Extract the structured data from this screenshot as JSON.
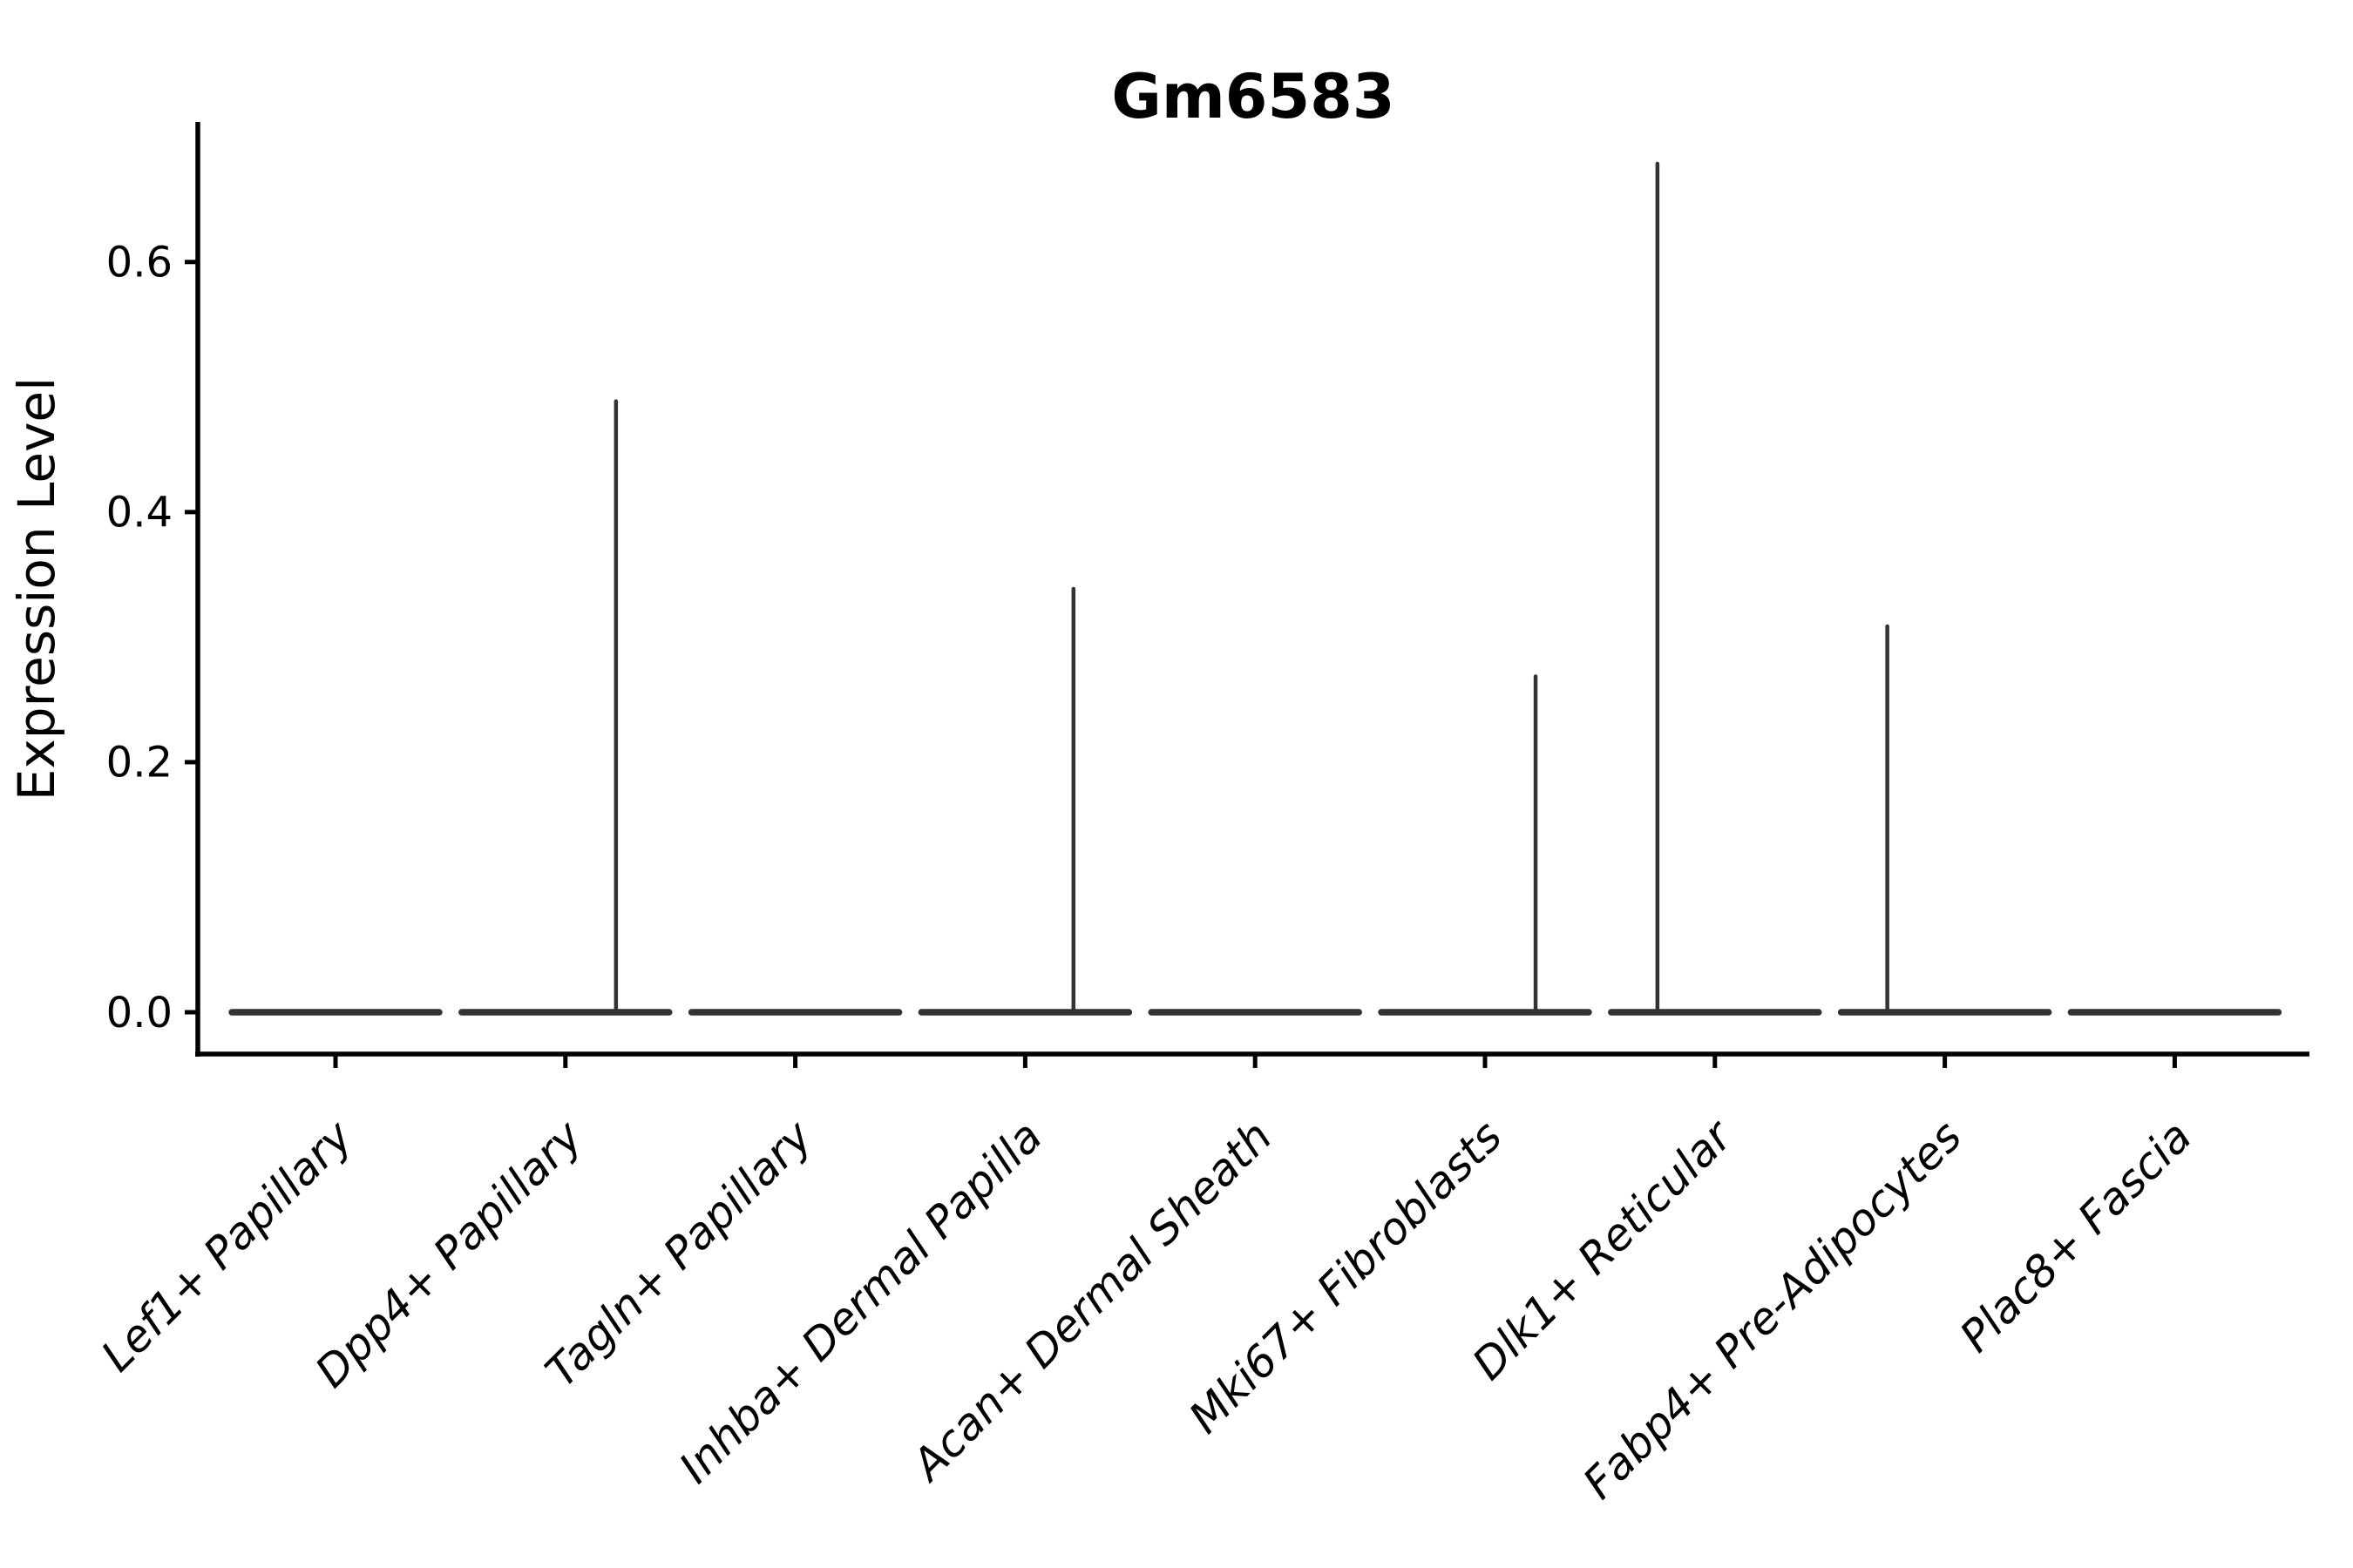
{
  "chart_data": {
    "type": "violin",
    "title": "Gm6583",
    "ylabel": "Expression Level",
    "xlabel": "",
    "legend": "none",
    "grid": false,
    "background": "#ffffff",
    "ylim": [
      0,
      0.712
    ],
    "yticks": [
      {
        "value": 0.0,
        "label": "0.0"
      },
      {
        "value": 0.2,
        "label": "0.2"
      },
      {
        "value": 0.4,
        "label": "0.4"
      },
      {
        "value": 0.6,
        "label": "0.6"
      }
    ],
    "categories": [
      "Lef1+ Papillary",
      "Dpp4+ Papillary",
      "Tagln+ Papillary",
      "Inhba+ Dermal Papilla",
      "Acan+ Dermal Sheath",
      "Mki67+ Fibroblasts",
      "Dlk1+ Reticular",
      "Fabp4+ Pre-Adipocytes",
      "Plac8+ Fascia"
    ],
    "violins": [
      {
        "category": "Lef1+ Papillary",
        "baseline_value": 0.0,
        "max_value": 0.0,
        "spike": null
      },
      {
        "category": "Dpp4+ Papillary",
        "baseline_value": 0.0,
        "max_value": 0.49,
        "spike": {
          "value": 0.49,
          "offset_frac": 0.22
        }
      },
      {
        "category": "Tagln+ Papillary",
        "baseline_value": 0.0,
        "max_value": 0.0,
        "spike": null
      },
      {
        "category": "Inhba+ Dermal Papilla",
        "baseline_value": 0.0,
        "max_value": 0.34,
        "spike": {
          "value": 0.34,
          "offset_frac": 0.21
        }
      },
      {
        "category": "Acan+ Dermal Sheath",
        "baseline_value": 0.0,
        "max_value": 0.0,
        "spike": null
      },
      {
        "category": "Mki67+ Fibroblasts",
        "baseline_value": 0.0,
        "max_value": 0.27,
        "spike": {
          "value": 0.27,
          "offset_frac": 0.22
        }
      },
      {
        "category": "Dlk1+ Reticular",
        "baseline_value": 0.0,
        "max_value": 0.68,
        "spike": {
          "value": 0.68,
          "offset_frac": -0.25
        }
      },
      {
        "category": "Fabp4+ Pre-Adipocytes",
        "baseline_value": 0.0,
        "max_value": 0.31,
        "spike": {
          "value": 0.31,
          "offset_frac": -0.25
        }
      },
      {
        "category": "Plac8+ Fascia",
        "baseline_value": 0.0,
        "max_value": 0.0,
        "spike": null
      }
    ],
    "colors": {
      "violin_stroke": "#333333",
      "axis": "#000000",
      "text": "#000000",
      "background": "#ffffff"
    }
  }
}
